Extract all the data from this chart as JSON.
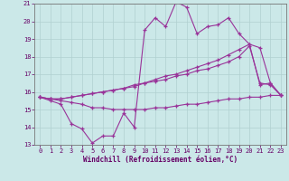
{
  "xlabel": "Windchill (Refroidissement éolien,°C)",
  "xlim": [
    -0.5,
    23.5
  ],
  "ylim": [
    13,
    21
  ],
  "yticks": [
    13,
    14,
    15,
    16,
    17,
    18,
    19,
    20,
    21
  ],
  "xticks": [
    0,
    1,
    2,
    3,
    4,
    5,
    6,
    7,
    8,
    9,
    10,
    11,
    12,
    13,
    14,
    15,
    16,
    17,
    18,
    19,
    20,
    21,
    22,
    23
  ],
  "bg_color": "#cbe8e8",
  "grid_color": "#b0d0d0",
  "line_color": "#993399",
  "line1_y": [
    15.7,
    15.5,
    15.3,
    14.2,
    13.9,
    13.1,
    13.5,
    13.5,
    14.8,
    14.0,
    19.5,
    20.2,
    19.7,
    21.1,
    20.8,
    19.3,
    19.7,
    19.8,
    20.2,
    19.3,
    18.7,
    16.4,
    16.5,
    15.8
  ],
  "line2_y": [
    15.7,
    15.6,
    15.6,
    15.7,
    15.8,
    15.9,
    16.0,
    16.1,
    16.2,
    16.3,
    16.5,
    16.6,
    16.7,
    16.9,
    17.0,
    17.2,
    17.3,
    17.5,
    17.7,
    18.0,
    18.6,
    16.5,
    16.4,
    15.8
  ],
  "line3_y": [
    15.7,
    15.6,
    15.6,
    15.7,
    15.8,
    15.9,
    16.0,
    16.1,
    16.2,
    16.4,
    16.5,
    16.7,
    16.9,
    17.0,
    17.2,
    17.4,
    17.6,
    17.8,
    18.1,
    18.4,
    18.7,
    18.5,
    16.5,
    15.8
  ],
  "line4_y": [
    15.7,
    15.6,
    15.5,
    15.4,
    15.3,
    15.1,
    15.1,
    15.0,
    15.0,
    15.0,
    15.0,
    15.1,
    15.1,
    15.2,
    15.3,
    15.3,
    15.4,
    15.5,
    15.6,
    15.6,
    15.7,
    15.7,
    15.8,
    15.8
  ]
}
